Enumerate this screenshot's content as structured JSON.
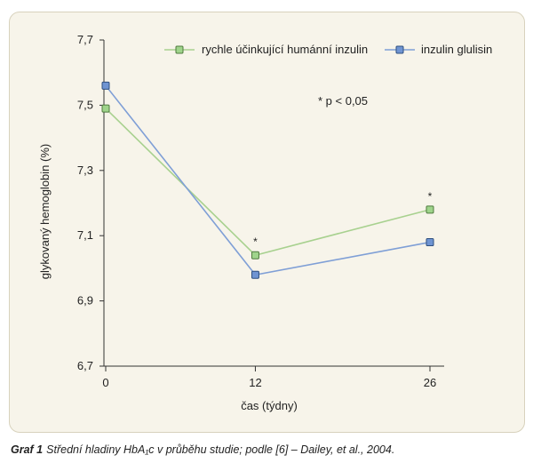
{
  "chart_data": {
    "type": "line",
    "x": [
      0,
      12,
      26
    ],
    "xticks": [
      "0",
      "12",
      "26"
    ],
    "xlabel": "čas (týdny)",
    "ylabel": "glykovaný hemoglobin (%)",
    "yticks": [
      "6,7",
      "6,9",
      "7,1",
      "7,3",
      "7,5",
      "7,7"
    ],
    "ylim": [
      6.7,
      7.7
    ],
    "series": [
      {
        "name": "rychle účinkující humánní inzulin",
        "values": [
          7.49,
          7.04,
          7.18
        ],
        "line_color": "#a8d18f",
        "marker_color": "#9fd48b",
        "marker_edge": "#4f7a3e"
      },
      {
        "name": "inzulin glulisin",
        "values": [
          7.56,
          6.98,
          7.08
        ],
        "line_color": "#7f9fd6",
        "marker_color": "#6f94d2",
        "marker_edge": "#2f4f7f"
      }
    ],
    "significance_note": "* p < 0,05",
    "significance_marks": [
      {
        "x": 12,
        "text": "*"
      },
      {
        "x": 26,
        "text": "*"
      }
    ],
    "legend_position": "top-right",
    "grid": false
  },
  "caption": {
    "lead": "Graf 1",
    "text": "Střední hladiny HbA₁c v průběhu studie; podle [6] – Dailey, et al., 2004."
  }
}
